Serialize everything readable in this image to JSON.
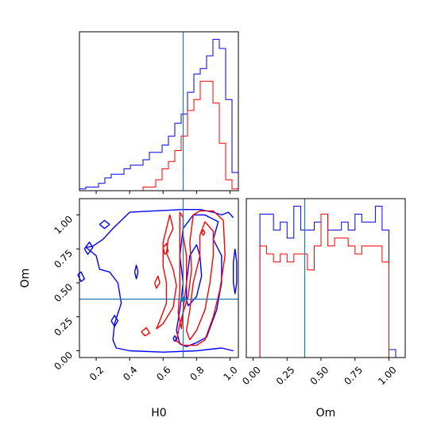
{
  "chart_data": {
    "type": "corner",
    "parameters": [
      "H0",
      "Om"
    ],
    "truth": {
      "H0": 0.72,
      "Om": 0.38
    },
    "colors": {
      "run_blue": "#0000ff",
      "run_red": "#ff0000",
      "truth": "#1f77b4",
      "axes": "#000000"
    },
    "panels": [
      {
        "id": "hist-H0",
        "type": "step-histogram",
        "xlabel": "",
        "xlim": [
          0.1,
          1.05
        ],
        "bin_edges": [
          0.1,
          0.138,
          0.176,
          0.214,
          0.252,
          0.29,
          0.328,
          0.366,
          0.404,
          0.442,
          0.48,
          0.518,
          0.556,
          0.594,
          0.632,
          0.67,
          0.708,
          0.746,
          0.784,
          0.822,
          0.86,
          0.898,
          0.936,
          0.974,
          1.012,
          1.05
        ],
        "series": [
          {
            "color": "#0000ff",
            "counts": [
              0.5,
              1,
              1,
              2,
              3.5,
              4.5,
              4.5,
              6,
              7,
              7,
              8.5,
              10.5,
              10.5,
              12.5,
              15,
              18.5,
              21,
              27,
              32,
              33.5,
              37,
              41.5,
              39,
              25,
              5
            ]
          },
          {
            "color": "#ff0000",
            "counts": [
              0,
              0,
              0,
              0,
              0,
              0,
              0,
              0,
              0,
              0,
              1,
              1,
              3,
              6,
              8,
              11,
              15,
              22,
              25,
              30,
              30,
              24,
              13,
              3,
              0.5
            ]
          }
        ]
      },
      {
        "id": "contour-H0-Om",
        "type": "contour",
        "xlabel": "H0",
        "ylabel": "Om",
        "xlim": [
          0.1,
          1.05
        ],
        "ylim": [
          -0.05,
          1.12
        ],
        "xticks": [
          "0.2",
          "0.4",
          "0.6",
          "0.8",
          "1.0"
        ],
        "yticks": [
          "0.00",
          "0.25",
          "0.50",
          "0.75",
          "1.00"
        ],
        "blue_contours": [
          [
            [
              0.14,
              0.76
            ],
            [
              0.18,
              0.77
            ],
            [
              0.24,
              0.82
            ],
            [
              0.3,
              0.9
            ],
            [
              0.4,
              1.02
            ],
            [
              0.55,
              1.03
            ],
            [
              0.72,
              1.04
            ],
            [
              0.82,
              1.04
            ],
            [
              0.9,
              1.02
            ],
            [
              0.95,
              1.0
            ],
            [
              0.99,
              1.02
            ],
            [
              1.02,
              0.98
            ]
          ],
          [
            [
              1.02,
              0.0
            ],
            [
              0.95,
              0.02
            ],
            [
              0.8,
              0.0
            ],
            [
              0.6,
              -0.01
            ],
            [
              0.4,
              0.0
            ],
            [
              0.32,
              0.02
            ],
            [
              0.3,
              0.08
            ],
            [
              0.31,
              0.2
            ],
            [
              0.35,
              0.35
            ],
            [
              0.33,
              0.5
            ],
            [
              0.28,
              0.58
            ],
            [
              0.22,
              0.6
            ],
            [
              0.2,
              0.7
            ],
            [
              0.14,
              0.76
            ]
          ],
          [
            [
              0.74,
              0.03
            ],
            [
              0.8,
              0.06
            ],
            [
              0.86,
              0.1
            ],
            [
              0.92,
              0.3
            ],
            [
              0.95,
              0.5
            ],
            [
              0.95,
              0.7
            ],
            [
              0.9,
              0.82
            ],
            [
              0.93,
              0.95
            ],
            [
              0.85,
              1.0
            ],
            [
              0.78,
              1.0
            ],
            [
              0.72,
              0.9
            ],
            [
              0.7,
              0.7
            ],
            [
              0.72,
              0.5
            ],
            [
              0.7,
              0.3
            ],
            [
              0.68,
              0.15
            ],
            [
              0.7,
              0.05
            ],
            [
              0.74,
              0.03
            ]
          ],
          [
            [
              0.75,
              0.33
            ],
            [
              0.8,
              0.4
            ],
            [
              0.83,
              0.55
            ],
            [
              0.82,
              0.7
            ],
            [
              0.8,
              0.78
            ],
            [
              0.76,
              0.7
            ],
            [
              0.74,
              0.5
            ],
            [
              0.74,
              0.38
            ],
            [
              0.75,
              0.33
            ]
          ],
          [
            [
              0.13,
              0.75
            ],
            [
              0.16,
              0.8
            ],
            [
              0.18,
              0.76
            ],
            [
              0.15,
              0.71
            ],
            [
              0.13,
              0.75
            ]
          ],
          [
            [
              0.09,
              0.56
            ],
            [
              0.11,
              0.58
            ],
            [
              0.13,
              0.53
            ],
            [
              0.11,
              0.51
            ],
            [
              0.09,
              0.56
            ]
          ],
          [
            [
              0.22,
              0.93
            ],
            [
              0.25,
              0.96
            ],
            [
              0.28,
              0.93
            ],
            [
              0.25,
              0.9
            ],
            [
              0.22,
              0.93
            ]
          ],
          [
            [
              0.29,
              0.22
            ],
            [
              0.31,
              0.26
            ],
            [
              0.33,
              0.22
            ],
            [
              0.31,
              0.18
            ],
            [
              0.29,
              0.22
            ]
          ],
          [
            [
              0.43,
              0.58
            ],
            [
              0.44,
              0.63
            ],
            [
              0.45,
              0.58
            ],
            [
              0.44,
              0.53
            ],
            [
              0.43,
              0.58
            ]
          ],
          [
            [
              0.66,
              0.09
            ],
            [
              0.67,
              0.11
            ],
            [
              0.68,
              0.09
            ],
            [
              0.67,
              0.07
            ],
            [
              0.66,
              0.09
            ]
          ],
          [
            [
              1.03,
              0.75
            ],
            [
              1.04,
              0.65
            ],
            [
              1.04,
              0.5
            ],
            [
              1.03,
              0.42
            ],
            [
              1.02,
              0.5
            ],
            [
              1.02,
              0.65
            ],
            [
              1.03,
              0.75
            ]
          ]
        ],
        "red_contours": [
          [
            [
              0.72,
              0.04
            ],
            [
              0.68,
              0.07
            ],
            [
              0.7,
              0.2
            ],
            [
              0.75,
              0.4
            ],
            [
              0.77,
              0.6
            ],
            [
              0.76,
              0.8
            ],
            [
              0.78,
              1.0
            ],
            [
              0.82,
              1.03
            ],
            [
              0.9,
              1.03
            ],
            [
              0.96,
              0.96
            ],
            [
              0.97,
              0.7
            ],
            [
              0.94,
              0.45
            ],
            [
              0.9,
              0.25
            ],
            [
              0.85,
              0.08
            ],
            [
              0.8,
              0.04
            ],
            [
              0.72,
              0.04
            ]
          ],
          [
            [
              0.76,
              0.08
            ],
            [
              0.8,
              0.15
            ],
            [
              0.85,
              0.3
            ],
            [
              0.88,
              0.5
            ],
            [
              0.9,
              0.7
            ],
            [
              0.9,
              0.88
            ],
            [
              0.85,
              0.95
            ],
            [
              0.82,
              0.85
            ],
            [
              0.82,
              0.7
            ],
            [
              0.78,
              0.5
            ],
            [
              0.76,
              0.3
            ],
            [
              0.74,
              0.15
            ],
            [
              0.76,
              0.08
            ]
          ],
          [
            [
              0.71,
              0.16
            ],
            [
              0.72,
              0.3
            ],
            [
              0.74,
              0.5
            ],
            [
              0.74,
              0.7
            ],
            [
              0.72,
              0.85
            ],
            [
              0.72,
              0.98
            ],
            [
              0.7,
              1.02
            ],
            [
              0.7,
              0.85
            ],
            [
              0.7,
              0.65
            ],
            [
              0.7,
              0.45
            ],
            [
              0.69,
              0.28
            ],
            [
              0.71,
              0.16
            ]
          ],
          [
            [
              0.56,
              0.16
            ],
            [
              0.6,
              0.2
            ],
            [
              0.66,
              0.32
            ],
            [
              0.68,
              0.48
            ],
            [
              0.66,
              0.6
            ],
            [
              0.62,
              0.72
            ],
            [
              0.63,
              0.82
            ],
            [
              0.66,
              0.9
            ],
            [
              0.64,
              1.0
            ],
            [
              0.62,
              0.9
            ],
            [
              0.6,
              0.8
            ],
            [
              0.6,
              0.62
            ],
            [
              0.62,
              0.5
            ],
            [
              0.62,
              0.35
            ],
            [
              0.58,
              0.22
            ],
            [
              0.56,
              0.16
            ]
          ],
          [
            [
              0.6,
              0.76
            ],
            [
              0.62,
              0.79
            ],
            [
              0.63,
              0.73
            ],
            [
              0.61,
              0.71
            ],
            [
              0.6,
              0.76
            ]
          ],
          [
            [
              0.55,
              0.5
            ],
            [
              0.57,
              0.55
            ],
            [
              0.58,
              0.5
            ],
            [
              0.56,
              0.46
            ],
            [
              0.55,
              0.5
            ]
          ],
          [
            [
              0.47,
              0.14
            ],
            [
              0.5,
              0.17
            ],
            [
              0.52,
              0.13
            ],
            [
              0.49,
              0.11
            ],
            [
              0.47,
              0.14
            ]
          ],
          [
            [
              0.83,
              0.87
            ],
            [
              0.84,
              0.89
            ],
            [
              0.85,
              0.87
            ],
            [
              0.84,
              0.85
            ],
            [
              0.83,
              0.87
            ]
          ]
        ]
      },
      {
        "id": "hist-Om",
        "type": "step-histogram",
        "xlabel": "Om",
        "xlim": [
          -0.05,
          1.12
        ],
        "xticks": [
          "0.00",
          "0.25",
          "0.50",
          "0.75",
          "1.00"
        ],
        "bin_edges": [
          -0.05,
          0.0,
          0.05,
          0.1,
          0.15,
          0.2,
          0.25,
          0.3,
          0.35,
          0.4,
          0.45,
          0.5,
          0.55,
          0.6,
          0.65,
          0.7,
          0.75,
          0.8,
          0.85,
          0.9,
          0.95,
          1.0,
          1.05
        ],
        "series": [
          {
            "color": "#0000ff",
            "counts": [
              0,
              0,
              9,
              9,
              8,
              8.5,
              7.5,
              9.5,
              8,
              8,
              8.5,
              9,
              8,
              8,
              8.5,
              8,
              9,
              8.5,
              8.5,
              9.5,
              8,
              0.5
            ]
          },
          {
            "color": "#ff0000",
            "counts": [
              0,
              0,
              7,
              6.5,
              6,
              6.5,
              6,
              6.5,
              6.5,
              5.5,
              7,
              9,
              7,
              7.5,
              7.5,
              7,
              6.5,
              7,
              7,
              7,
              6,
              0
            ]
          }
        ]
      }
    ]
  }
}
